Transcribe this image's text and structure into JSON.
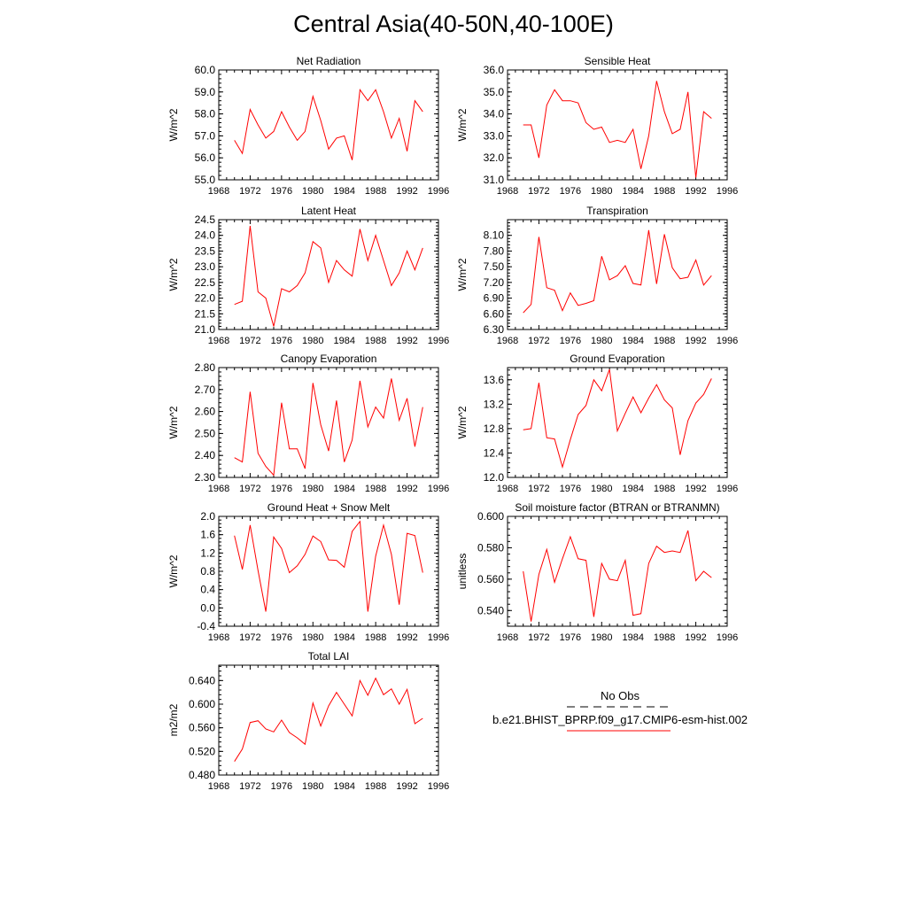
{
  "title": "Central Asia(40-50N,40-100E)",
  "legend": {
    "entries": [
      {
        "label": "No Obs",
        "color": "#000000",
        "style": "dashed"
      },
      {
        "label": "b.e21.BHIST_BPRP.f09_g17.CMIP6-esm-hist.002",
        "color": "#ff0000",
        "style": "solid"
      }
    ]
  },
  "chart_data": [
    {
      "type": "line",
      "title": "Net Radiation",
      "xlabel": "",
      "ylabel": "W/m^2",
      "xlim": [
        1968,
        1996
      ],
      "ylim": [
        55.0,
        60.0
      ],
      "xticks": [
        1968,
        1972,
        1976,
        1980,
        1984,
        1988,
        1992,
        1996
      ],
      "xtick_labels": [
        "1968",
        "1972",
        "1976",
        "1980",
        "1984",
        "1988",
        "1992",
        "1996"
      ],
      "yticks": [
        55.0,
        56.0,
        57.0,
        58.0,
        59.0,
        60.0
      ],
      "ytick_labels": [
        "55.0",
        "56.0",
        "57.0",
        "58.0",
        "59.0",
        "60.0"
      ],
      "series": [
        {
          "color": "#ff0000",
          "x": [
            1970,
            1971,
            1972,
            1973,
            1974,
            1975,
            1976,
            1977,
            1978,
            1979,
            1980,
            1981,
            1982,
            1983,
            1984,
            1985,
            1986,
            1987,
            1988,
            1989,
            1990,
            1991,
            1992,
            1993,
            1994
          ],
          "values": [
            56.8,
            56.2,
            58.2,
            57.5,
            56.9,
            57.2,
            58.1,
            57.4,
            56.8,
            57.2,
            58.8,
            57.7,
            56.4,
            56.9,
            57.0,
            55.9,
            59.1,
            58.6,
            59.1,
            58.1,
            56.9,
            57.8,
            56.3,
            58.6,
            58.1
          ]
        }
      ]
    },
    {
      "type": "line",
      "title": "Sensible Heat",
      "xlabel": "",
      "ylabel": "W/m^2",
      "xlim": [
        1968,
        1996
      ],
      "ylim": [
        31.0,
        36.0
      ],
      "xticks": [
        1968,
        1972,
        1976,
        1980,
        1984,
        1988,
        1992,
        1996
      ],
      "xtick_labels": [
        "1968",
        "1972",
        "1976",
        "1980",
        "1984",
        "1988",
        "1992",
        "1996"
      ],
      "yticks": [
        31.0,
        32.0,
        33.0,
        34.0,
        35.0,
        36.0
      ],
      "ytick_labels": [
        "31.0",
        "32.0",
        "33.0",
        "34.0",
        "35.0",
        "36.0"
      ],
      "series": [
        {
          "color": "#ff0000",
          "x": [
            1970,
            1971,
            1972,
            1973,
            1974,
            1975,
            1976,
            1977,
            1978,
            1979,
            1980,
            1981,
            1982,
            1983,
            1984,
            1985,
            1986,
            1987,
            1988,
            1989,
            1990,
            1991,
            1992,
            1993,
            1994
          ],
          "values": [
            33.5,
            33.5,
            32.0,
            34.4,
            35.1,
            34.6,
            34.6,
            34.5,
            33.6,
            33.3,
            33.4,
            32.7,
            32.8,
            32.7,
            33.3,
            31.5,
            33.0,
            35.5,
            34.1,
            33.1,
            33.3,
            35.0,
            31.1,
            34.1,
            33.8
          ]
        }
      ]
    },
    {
      "type": "line",
      "title": "Latent Heat",
      "xlabel": "",
      "ylabel": "W/m^2",
      "xlim": [
        1968,
        1996
      ],
      "ylim": [
        21.0,
        24.5
      ],
      "xticks": [
        1968,
        1972,
        1976,
        1980,
        1984,
        1988,
        1992,
        1996
      ],
      "xtick_labels": [
        "1968",
        "1972",
        "1976",
        "1980",
        "1984",
        "1988",
        "1992",
        "1996"
      ],
      "yticks": [
        21.0,
        21.5,
        22.0,
        22.5,
        23.0,
        23.5,
        24.0,
        24.5
      ],
      "ytick_labels": [
        "21.0",
        "21.5",
        "22.0",
        "22.5",
        "23.0",
        "23.5",
        "24.0",
        "24.5"
      ],
      "series": [
        {
          "color": "#ff0000",
          "x": [
            1970,
            1971,
            1972,
            1973,
            1974,
            1975,
            1976,
            1977,
            1978,
            1979,
            1980,
            1981,
            1982,
            1983,
            1984,
            1985,
            1986,
            1987,
            1988,
            1989,
            1990,
            1991,
            1992,
            1993,
            1994
          ],
          "values": [
            21.8,
            21.9,
            24.3,
            22.2,
            22.0,
            21.1,
            22.3,
            22.2,
            22.4,
            22.8,
            23.8,
            23.6,
            22.5,
            23.2,
            22.9,
            22.7,
            24.2,
            23.2,
            24.0,
            23.2,
            22.4,
            22.8,
            23.5,
            22.9,
            23.6
          ]
        }
      ]
    },
    {
      "type": "line",
      "title": "Transpiration",
      "xlabel": "",
      "ylabel": "W/m^2",
      "xlim": [
        1968,
        1996
      ],
      "ylim": [
        6.3,
        8.4
      ],
      "xticks": [
        1968,
        1972,
        1976,
        1980,
        1984,
        1988,
        1992,
        1996
      ],
      "xtick_labels": [
        "1968",
        "1972",
        "1976",
        "1980",
        "1984",
        "1988",
        "1992",
        "1996"
      ],
      "yticks": [
        6.3,
        6.6,
        6.9,
        7.2,
        7.5,
        7.8,
        8.1
      ],
      "ytick_labels": [
        "6.30",
        "6.60",
        "6.90",
        "7.20",
        "7.50",
        "7.80",
        "8.10"
      ],
      "series": [
        {
          "color": "#ff0000",
          "x": [
            1970,
            1971,
            1972,
            1973,
            1974,
            1975,
            1976,
            1977,
            1978,
            1979,
            1980,
            1981,
            1982,
            1983,
            1984,
            1985,
            1986,
            1987,
            1988,
            1989,
            1990,
            1991,
            1992,
            1993,
            1994
          ],
          "values": [
            6.62,
            6.78,
            8.07,
            7.1,
            7.05,
            6.66,
            7.0,
            6.76,
            6.8,
            6.85,
            7.7,
            7.25,
            7.33,
            7.52,
            7.18,
            7.15,
            8.2,
            7.17,
            8.12,
            7.48,
            7.27,
            7.3,
            7.63,
            7.15,
            7.33
          ]
        }
      ]
    },
    {
      "type": "line",
      "title": "Canopy Evaporation",
      "xlabel": "",
      "ylabel": "W/m^2",
      "xlim": [
        1968,
        1996
      ],
      "ylim": [
        2.3,
        2.8
      ],
      "xticks": [
        1968,
        1972,
        1976,
        1980,
        1984,
        1988,
        1992,
        1996
      ],
      "xtick_labels": [
        "1968",
        "1972",
        "1976",
        "1980",
        "1984",
        "1988",
        "1992",
        "1996"
      ],
      "yticks": [
        2.3,
        2.4,
        2.5,
        2.6,
        2.7,
        2.8
      ],
      "ytick_labels": [
        "2.30",
        "2.40",
        "2.50",
        "2.60",
        "2.70",
        "2.80"
      ],
      "series": [
        {
          "color": "#ff0000",
          "x": [
            1970,
            1971,
            1972,
            1973,
            1974,
            1975,
            1976,
            1977,
            1978,
            1979,
            1980,
            1981,
            1982,
            1983,
            1984,
            1985,
            1986,
            1987,
            1988,
            1989,
            1990,
            1991,
            1992,
            1993,
            1994
          ],
          "values": [
            2.39,
            2.37,
            2.69,
            2.41,
            2.35,
            2.31,
            2.64,
            2.43,
            2.43,
            2.34,
            2.73,
            2.54,
            2.42,
            2.65,
            2.37,
            2.47,
            2.74,
            2.53,
            2.62,
            2.57,
            2.75,
            2.56,
            2.66,
            2.44,
            2.62
          ]
        }
      ]
    },
    {
      "type": "line",
      "title": "Ground Evaporation",
      "xlabel": "",
      "ylabel": "W/m^2",
      "xlim": [
        1968,
        1996
      ],
      "ylim": [
        12.0,
        13.8
      ],
      "xticks": [
        1968,
        1972,
        1976,
        1980,
        1984,
        1988,
        1992,
        1996
      ],
      "xtick_labels": [
        "1968",
        "1972",
        "1976",
        "1980",
        "1984",
        "1988",
        "1992",
        "1996"
      ],
      "yticks": [
        12.0,
        12.4,
        12.8,
        13.2,
        13.6
      ],
      "ytick_labels": [
        "12.0",
        "12.4",
        "12.8",
        "13.2",
        "13.6"
      ],
      "series": [
        {
          "color": "#ff0000",
          "x": [
            1970,
            1971,
            1972,
            1973,
            1974,
            1975,
            1976,
            1977,
            1978,
            1979,
            1980,
            1981,
            1982,
            1983,
            1984,
            1985,
            1986,
            1987,
            1988,
            1989,
            1990,
            1991,
            1992,
            1993,
            1994
          ],
          "values": [
            12.78,
            12.8,
            13.55,
            12.65,
            12.63,
            12.17,
            12.62,
            13.03,
            13.18,
            13.6,
            13.42,
            13.77,
            12.76,
            13.05,
            13.32,
            13.06,
            13.3,
            13.52,
            13.27,
            13.14,
            12.37,
            12.93,
            13.22,
            13.36,
            13.62
          ]
        }
      ]
    },
    {
      "type": "line",
      "title": "Ground Heat + Snow Melt",
      "xlabel": "",
      "ylabel": "W/m^2",
      "xlim": [
        1968,
        1996
      ],
      "ylim": [
        -0.4,
        2.0
      ],
      "xticks": [
        1968,
        1972,
        1976,
        1980,
        1984,
        1988,
        1992,
        1996
      ],
      "xtick_labels": [
        "1968",
        "1972",
        "1976",
        "1980",
        "1984",
        "1988",
        "1992",
        "1996"
      ],
      "yticks": [
        -0.4,
        0.0,
        0.4,
        0.8,
        1.2,
        1.6,
        2.0
      ],
      "ytick_labels": [
        "-0.4",
        "0.0",
        "0.4",
        "0.8",
        "1.2",
        "1.6",
        "2.0"
      ],
      "series": [
        {
          "color": "#ff0000",
          "x": [
            1970,
            1971,
            1972,
            1973,
            1974,
            1975,
            1976,
            1977,
            1978,
            1979,
            1980,
            1981,
            1982,
            1983,
            1984,
            1985,
            1986,
            1987,
            1988,
            1989,
            1990,
            1991,
            1992,
            1993,
            1994
          ],
          "values": [
            1.58,
            0.84,
            1.81,
            0.82,
            -0.08,
            1.55,
            1.3,
            0.77,
            0.92,
            1.17,
            1.57,
            1.45,
            1.05,
            1.04,
            0.89,
            1.67,
            1.89,
            -0.08,
            1.13,
            1.81,
            1.17,
            0.07,
            1.63,
            1.58,
            0.77
          ]
        }
      ]
    },
    {
      "type": "line",
      "title": "Soil moisture factor (BTRAN or BTRANMN)",
      "xlabel": "",
      "ylabel": "unitless",
      "xlim": [
        1968,
        1996
      ],
      "ylim": [
        0.53,
        0.6
      ],
      "xticks": [
        1968,
        1972,
        1976,
        1980,
        1984,
        1988,
        1992,
        1996
      ],
      "xtick_labels": [
        "1968",
        "1972",
        "1976",
        "1980",
        "1984",
        "1988",
        "1992",
        "1996"
      ],
      "yticks": [
        0.54,
        0.56,
        0.58,
        0.6
      ],
      "ytick_labels": [
        "0.540",
        "0.560",
        "0.580",
        "0.600"
      ],
      "series": [
        {
          "color": "#ff0000",
          "x": [
            1970,
            1971,
            1972,
            1973,
            1974,
            1975,
            1976,
            1977,
            1978,
            1979,
            1980,
            1981,
            1982,
            1983,
            1984,
            1985,
            1986,
            1987,
            1988,
            1989,
            1990,
            1991,
            1992,
            1993,
            1994
          ],
          "values": [
            0.565,
            0.533,
            0.563,
            0.579,
            0.558,
            0.573,
            0.587,
            0.573,
            0.572,
            0.536,
            0.57,
            0.56,
            0.559,
            0.572,
            0.537,
            0.538,
            0.57,
            0.581,
            0.577,
            0.578,
            0.577,
            0.591,
            0.559,
            0.565,
            0.561
          ]
        }
      ]
    },
    {
      "type": "line",
      "title": "Total LAI",
      "xlabel": "",
      "ylabel": "m2/m2",
      "xlim": [
        1968,
        1996
      ],
      "ylim": [
        0.48,
        0.666
      ],
      "xticks": [
        1968,
        1972,
        1976,
        1980,
        1984,
        1988,
        1992,
        1996
      ],
      "xtick_labels": [
        "1968",
        "1972",
        "1976",
        "1980",
        "1984",
        "1988",
        "1992",
        "1996"
      ],
      "yticks": [
        0.48,
        0.52,
        0.56,
        0.6,
        0.64
      ],
      "ytick_labels": [
        "0.480",
        "0.520",
        "0.560",
        "0.600",
        "0.640"
      ],
      "series": [
        {
          "color": "#ff0000",
          "x": [
            1970,
            1971,
            1972,
            1973,
            1974,
            1975,
            1976,
            1977,
            1978,
            1979,
            1980,
            1981,
            1982,
            1983,
            1984,
            1985,
            1986,
            1987,
            1988,
            1989,
            1990,
            1991,
            1992,
            1993,
            1994
          ],
          "values": [
            0.503,
            0.524,
            0.569,
            0.572,
            0.558,
            0.553,
            0.573,
            0.552,
            0.543,
            0.532,
            0.602,
            0.563,
            0.597,
            0.62,
            0.6,
            0.58,
            0.64,
            0.615,
            0.644,
            0.616,
            0.626,
            0.6,
            0.625,
            0.567,
            0.576
          ]
        }
      ]
    }
  ]
}
